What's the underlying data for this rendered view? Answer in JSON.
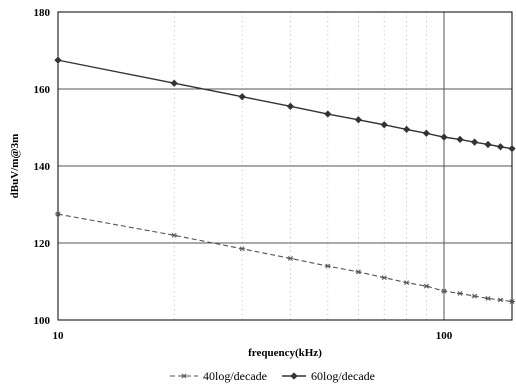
{
  "chart_data": {
    "type": "line",
    "title": "",
    "xlabel": "frequency(kHz)",
    "ylabel": "dBuV/m@3m",
    "x_scale": "log",
    "xlim": [
      10,
      150
    ],
    "ylim": [
      100,
      180
    ],
    "x_ticks": [
      10,
      100
    ],
    "y_ticks": [
      100,
      120,
      140,
      160,
      180
    ],
    "x_tick_labels": [
      "10",
      "100"
    ],
    "y_tick_labels": [
      "100",
      "120",
      "140",
      "160",
      "180"
    ],
    "grid": true,
    "legend_position": "bottom",
    "series": [
      {
        "name": "40log/decade",
        "line_style": "dashed",
        "marker": "star",
        "color": "#555555",
        "x": [
          10,
          20,
          30,
          40,
          50,
          60,
          70,
          80,
          90,
          100,
          110,
          120,
          130,
          140,
          150
        ],
        "y": [
          127.5,
          122,
          118.5,
          116,
          114,
          112.5,
          111,
          109.7,
          108.8,
          107.5,
          106.9,
          106.2,
          105.6,
          105.2,
          104.8
        ]
      },
      {
        "name": "60log/decade",
        "line_style": "solid",
        "marker": "diamond",
        "color": "#333333",
        "x": [
          10,
          20,
          30,
          40,
          50,
          60,
          70,
          80,
          90,
          100,
          110,
          120,
          130,
          140,
          150
        ],
        "y": [
          167.5,
          161.5,
          158,
          155.5,
          153.5,
          152,
          150.7,
          149.5,
          148.5,
          147.5,
          146.9,
          146.2,
          145.6,
          145,
          144.5
        ]
      }
    ]
  }
}
